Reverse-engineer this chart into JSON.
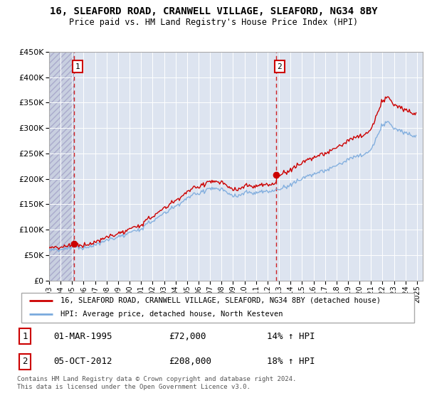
{
  "title": "16, SLEAFORD ROAD, CRANWELL VILLAGE, SLEAFORD, NG34 8BY",
  "subtitle": "Price paid vs. HM Land Registry's House Price Index (HPI)",
  "sale1_date": "01-MAR-1995",
  "sale1_price": 72000,
  "sale1_label": "1",
  "sale1_hpi_pct": "14%",
  "sale2_date": "05-OCT-2012",
  "sale2_price": 208000,
  "sale2_label": "2",
  "sale2_hpi_pct": "18%",
  "legend_line1": "16, SLEAFORD ROAD, CRANWELL VILLAGE, SLEAFORD, NG34 8BY (detached house)",
  "legend_line2": "HPI: Average price, detached house, North Kesteven",
  "footer": "Contains HM Land Registry data © Crown copyright and database right 2024.\nThis data is licensed under the Open Government Licence v3.0.",
  "hpi_color": "#7aaadd",
  "price_color": "#cc0000",
  "bg_color": "#dde4f0",
  "hatch_color": "#c8cfe0",
  "grid_color": "white",
  "ylim": [
    0,
    450000
  ],
  "yticks": [
    0,
    50000,
    100000,
    150000,
    200000,
    250000,
    300000,
    350000,
    400000,
    450000
  ],
  "xlim_start": 1993.0,
  "xlim_end": 2025.5,
  "sale1_year": 1995.17,
  "sale2_year": 2012.75
}
